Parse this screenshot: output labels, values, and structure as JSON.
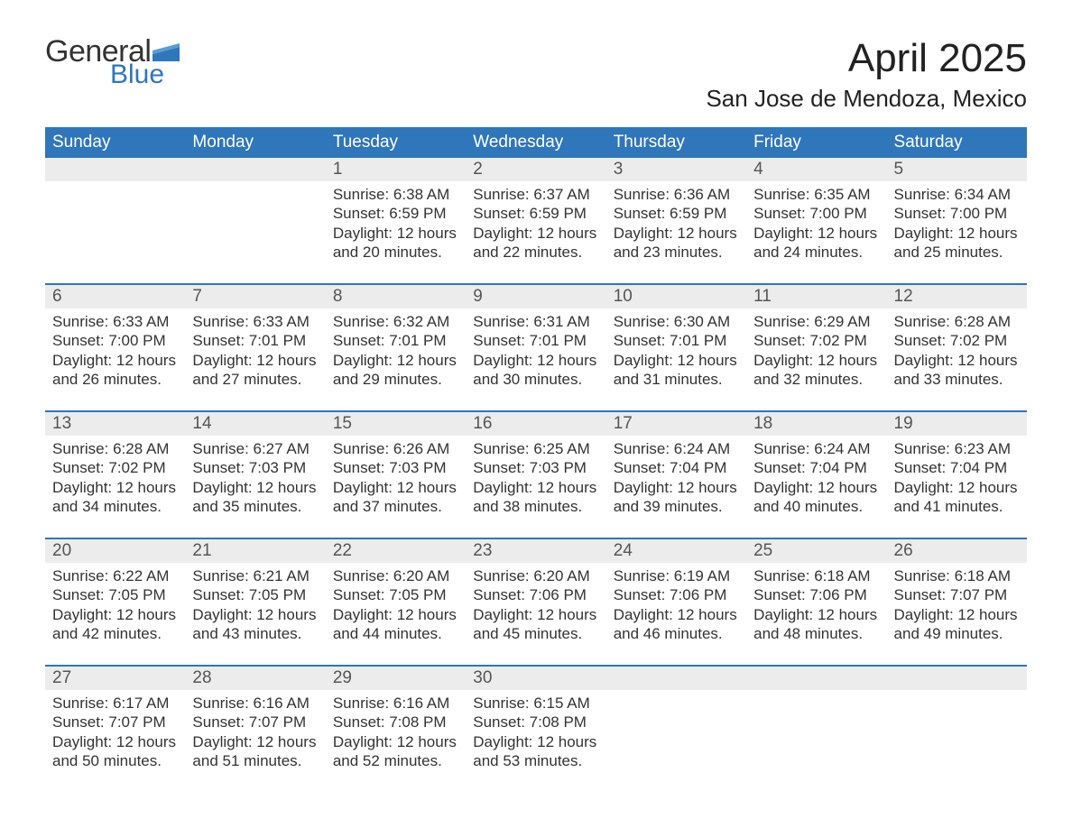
{
  "brand": {
    "general": "General",
    "blue": "Blue"
  },
  "title": "April 2025",
  "location": "San Jose de Mendoza, Mexico",
  "colors": {
    "header_bg": "#2f76bb",
    "header_text": "#ffffff",
    "daynum_bg": "#ececec",
    "rule": "#2f76bb",
    "body_text": "#333333",
    "background": "#ffffff"
  },
  "weekdays": [
    "Sunday",
    "Monday",
    "Tuesday",
    "Wednesday",
    "Thursday",
    "Friday",
    "Saturday"
  ],
  "weeks": [
    [
      {
        "num": "",
        "sunrise": "",
        "sunset": "",
        "daylight": ""
      },
      {
        "num": "",
        "sunrise": "",
        "sunset": "",
        "daylight": ""
      },
      {
        "num": "1",
        "sunrise": "Sunrise: 6:38 AM",
        "sunset": "Sunset: 6:59 PM",
        "daylight": "Daylight: 12 hours and 20 minutes."
      },
      {
        "num": "2",
        "sunrise": "Sunrise: 6:37 AM",
        "sunset": "Sunset: 6:59 PM",
        "daylight": "Daylight: 12 hours and 22 minutes."
      },
      {
        "num": "3",
        "sunrise": "Sunrise: 6:36 AM",
        "sunset": "Sunset: 6:59 PM",
        "daylight": "Daylight: 12 hours and 23 minutes."
      },
      {
        "num": "4",
        "sunrise": "Sunrise: 6:35 AM",
        "sunset": "Sunset: 7:00 PM",
        "daylight": "Daylight: 12 hours and 24 minutes."
      },
      {
        "num": "5",
        "sunrise": "Sunrise: 6:34 AM",
        "sunset": "Sunset: 7:00 PM",
        "daylight": "Daylight: 12 hours and 25 minutes."
      }
    ],
    [
      {
        "num": "6",
        "sunrise": "Sunrise: 6:33 AM",
        "sunset": "Sunset: 7:00 PM",
        "daylight": "Daylight: 12 hours and 26 minutes."
      },
      {
        "num": "7",
        "sunrise": "Sunrise: 6:33 AM",
        "sunset": "Sunset: 7:01 PM",
        "daylight": "Daylight: 12 hours and 27 minutes."
      },
      {
        "num": "8",
        "sunrise": "Sunrise: 6:32 AM",
        "sunset": "Sunset: 7:01 PM",
        "daylight": "Daylight: 12 hours and 29 minutes."
      },
      {
        "num": "9",
        "sunrise": "Sunrise: 6:31 AM",
        "sunset": "Sunset: 7:01 PM",
        "daylight": "Daylight: 12 hours and 30 minutes."
      },
      {
        "num": "10",
        "sunrise": "Sunrise: 6:30 AM",
        "sunset": "Sunset: 7:01 PM",
        "daylight": "Daylight: 12 hours and 31 minutes."
      },
      {
        "num": "11",
        "sunrise": "Sunrise: 6:29 AM",
        "sunset": "Sunset: 7:02 PM",
        "daylight": "Daylight: 12 hours and 32 minutes."
      },
      {
        "num": "12",
        "sunrise": "Sunrise: 6:28 AM",
        "sunset": "Sunset: 7:02 PM",
        "daylight": "Daylight: 12 hours and 33 minutes."
      }
    ],
    [
      {
        "num": "13",
        "sunrise": "Sunrise: 6:28 AM",
        "sunset": "Sunset: 7:02 PM",
        "daylight": "Daylight: 12 hours and 34 minutes."
      },
      {
        "num": "14",
        "sunrise": "Sunrise: 6:27 AM",
        "sunset": "Sunset: 7:03 PM",
        "daylight": "Daylight: 12 hours and 35 minutes."
      },
      {
        "num": "15",
        "sunrise": "Sunrise: 6:26 AM",
        "sunset": "Sunset: 7:03 PM",
        "daylight": "Daylight: 12 hours and 37 minutes."
      },
      {
        "num": "16",
        "sunrise": "Sunrise: 6:25 AM",
        "sunset": "Sunset: 7:03 PM",
        "daylight": "Daylight: 12 hours and 38 minutes."
      },
      {
        "num": "17",
        "sunrise": "Sunrise: 6:24 AM",
        "sunset": "Sunset: 7:04 PM",
        "daylight": "Daylight: 12 hours and 39 minutes."
      },
      {
        "num": "18",
        "sunrise": "Sunrise: 6:24 AM",
        "sunset": "Sunset: 7:04 PM",
        "daylight": "Daylight: 12 hours and 40 minutes."
      },
      {
        "num": "19",
        "sunrise": "Sunrise: 6:23 AM",
        "sunset": "Sunset: 7:04 PM",
        "daylight": "Daylight: 12 hours and 41 minutes."
      }
    ],
    [
      {
        "num": "20",
        "sunrise": "Sunrise: 6:22 AM",
        "sunset": "Sunset: 7:05 PM",
        "daylight": "Daylight: 12 hours and 42 minutes."
      },
      {
        "num": "21",
        "sunrise": "Sunrise: 6:21 AM",
        "sunset": "Sunset: 7:05 PM",
        "daylight": "Daylight: 12 hours and 43 minutes."
      },
      {
        "num": "22",
        "sunrise": "Sunrise: 6:20 AM",
        "sunset": "Sunset: 7:05 PM",
        "daylight": "Daylight: 12 hours and 44 minutes."
      },
      {
        "num": "23",
        "sunrise": "Sunrise: 6:20 AM",
        "sunset": "Sunset: 7:06 PM",
        "daylight": "Daylight: 12 hours and 45 minutes."
      },
      {
        "num": "24",
        "sunrise": "Sunrise: 6:19 AM",
        "sunset": "Sunset: 7:06 PM",
        "daylight": "Daylight: 12 hours and 46 minutes."
      },
      {
        "num": "25",
        "sunrise": "Sunrise: 6:18 AM",
        "sunset": "Sunset: 7:06 PM",
        "daylight": "Daylight: 12 hours and 48 minutes."
      },
      {
        "num": "26",
        "sunrise": "Sunrise: 6:18 AM",
        "sunset": "Sunset: 7:07 PM",
        "daylight": "Daylight: 12 hours and 49 minutes."
      }
    ],
    [
      {
        "num": "27",
        "sunrise": "Sunrise: 6:17 AM",
        "sunset": "Sunset: 7:07 PM",
        "daylight": "Daylight: 12 hours and 50 minutes."
      },
      {
        "num": "28",
        "sunrise": "Sunrise: 6:16 AM",
        "sunset": "Sunset: 7:07 PM",
        "daylight": "Daylight: 12 hours and 51 minutes."
      },
      {
        "num": "29",
        "sunrise": "Sunrise: 6:16 AM",
        "sunset": "Sunset: 7:08 PM",
        "daylight": "Daylight: 12 hours and 52 minutes."
      },
      {
        "num": "30",
        "sunrise": "Sunrise: 6:15 AM",
        "sunset": "Sunset: 7:08 PM",
        "daylight": "Daylight: 12 hours and 53 minutes."
      },
      {
        "num": "",
        "sunrise": "",
        "sunset": "",
        "daylight": ""
      },
      {
        "num": "",
        "sunrise": "",
        "sunset": "",
        "daylight": ""
      },
      {
        "num": "",
        "sunrise": "",
        "sunset": "",
        "daylight": ""
      }
    ]
  ]
}
